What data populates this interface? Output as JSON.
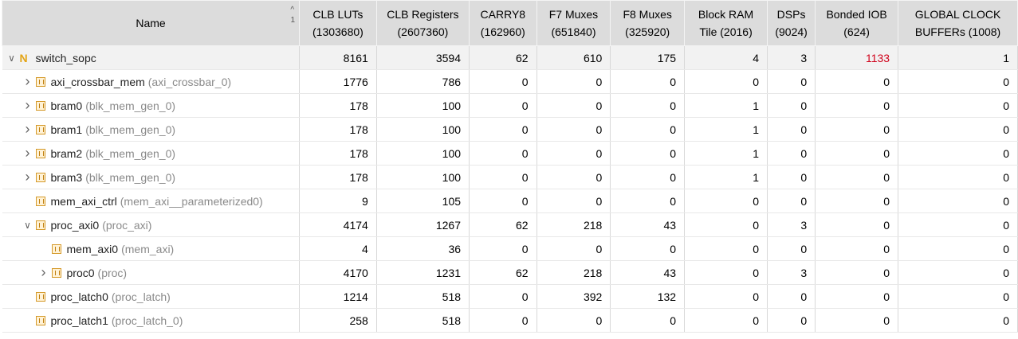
{
  "columns": [
    {
      "label": "Name",
      "sub": ""
    },
    {
      "label": "CLB LUTs",
      "sub": "(1303680)"
    },
    {
      "label": "CLB Registers",
      "sub": "(2607360)"
    },
    {
      "label": "CARRY8",
      "sub": "(162960)"
    },
    {
      "label": "F7 Muxes",
      "sub": "(651840)"
    },
    {
      "label": "F8 Muxes",
      "sub": "(325920)"
    },
    {
      "label": "Block RAM",
      "sub": "Tile (2016)"
    },
    {
      "label": "DSPs",
      "sub": "(9024)"
    },
    {
      "label": "Bonded IOB",
      "sub": "(624)"
    },
    {
      "label": "GLOBAL CLOCK",
      "sub": "BUFFERs (1008)"
    }
  ],
  "sort": {
    "arrow": "^",
    "priority": "1"
  },
  "rows": [
    {
      "depth": 0,
      "expander": "expanded",
      "icon": "top",
      "inst": "switch_sopc",
      "mod": "",
      "values": [
        "8161",
        "3594",
        "62",
        "610",
        "175",
        "4",
        "3",
        "1133",
        "1"
      ],
      "highlight_col": 7
    },
    {
      "depth": 1,
      "expander": "collapsed",
      "icon": "cell",
      "inst": "axi_crossbar_mem",
      "mod": "(axi_crossbar_0)",
      "values": [
        "1776",
        "786",
        "0",
        "0",
        "0",
        "0",
        "0",
        "0",
        "0"
      ]
    },
    {
      "depth": 1,
      "expander": "collapsed",
      "icon": "cell",
      "inst": "bram0",
      "mod": "(blk_mem_gen_0)",
      "values": [
        "178",
        "100",
        "0",
        "0",
        "0",
        "1",
        "0",
        "0",
        "0"
      ]
    },
    {
      "depth": 1,
      "expander": "collapsed",
      "icon": "cell",
      "inst": "bram1",
      "mod": "(blk_mem_gen_0)",
      "values": [
        "178",
        "100",
        "0",
        "0",
        "0",
        "1",
        "0",
        "0",
        "0"
      ]
    },
    {
      "depth": 1,
      "expander": "collapsed",
      "icon": "cell",
      "inst": "bram2",
      "mod": "(blk_mem_gen_0)",
      "values": [
        "178",
        "100",
        "0",
        "0",
        "0",
        "1",
        "0",
        "0",
        "0"
      ]
    },
    {
      "depth": 1,
      "expander": "collapsed",
      "icon": "cell",
      "inst": "bram3",
      "mod": "(blk_mem_gen_0)",
      "values": [
        "178",
        "100",
        "0",
        "0",
        "0",
        "1",
        "0",
        "0",
        "0"
      ]
    },
    {
      "depth": 1,
      "expander": "none",
      "icon": "cell",
      "inst": "mem_axi_ctrl",
      "mod": "(mem_axi__parameterized0)",
      "values": [
        "9",
        "105",
        "0",
        "0",
        "0",
        "0",
        "0",
        "0",
        "0"
      ]
    },
    {
      "depth": 1,
      "expander": "expanded",
      "icon": "cell",
      "inst": "proc_axi0",
      "mod": "(proc_axi)",
      "values": [
        "4174",
        "1267",
        "62",
        "218",
        "43",
        "0",
        "3",
        "0",
        "0"
      ]
    },
    {
      "depth": 2,
      "expander": "none",
      "icon": "cell",
      "inst": "mem_axi0",
      "mod": "(mem_axi)",
      "values": [
        "4",
        "36",
        "0",
        "0",
        "0",
        "0",
        "0",
        "0",
        "0"
      ]
    },
    {
      "depth": 2,
      "expander": "collapsed",
      "icon": "cell",
      "inst": "proc0",
      "mod": "(proc)",
      "values": [
        "4170",
        "1231",
        "62",
        "218",
        "43",
        "0",
        "3",
        "0",
        "0"
      ]
    },
    {
      "depth": 1,
      "expander": "none",
      "icon": "cell",
      "inst": "proc_latch0",
      "mod": "(proc_latch)",
      "values": [
        "1214",
        "518",
        "0",
        "392",
        "132",
        "0",
        "0",
        "0",
        "0"
      ]
    },
    {
      "depth": 1,
      "expander": "none",
      "icon": "cell",
      "inst": "proc_latch1",
      "mod": "(proc_latch_0)",
      "values": [
        "258",
        "518",
        "0",
        "0",
        "0",
        "0",
        "0",
        "0",
        "0"
      ]
    }
  ],
  "colors": {
    "header_bg": "#dcdcdc",
    "highlight_value": "#d0021b",
    "cell_icon": "#e3a415"
  }
}
